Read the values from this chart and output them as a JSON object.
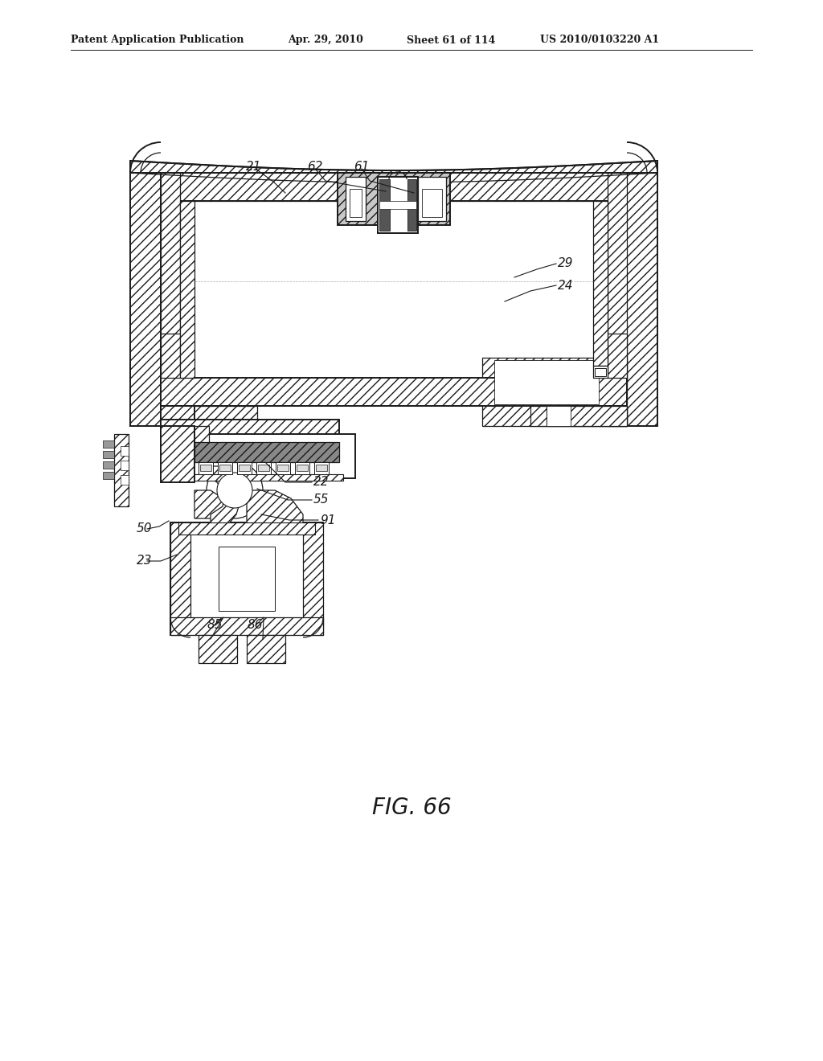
{
  "bg_color": "#ffffff",
  "line_color": "#1a1a1a",
  "header_left": "Patent Application Publication",
  "header_mid": "Apr. 29, 2010  Sheet 61 of 114",
  "header_right": "US 2010/0103220 A1",
  "fig_caption": "FIG. 66",
  "label_fontsize": 11,
  "caption_fontsize": 20,
  "header_fontsize": 9
}
